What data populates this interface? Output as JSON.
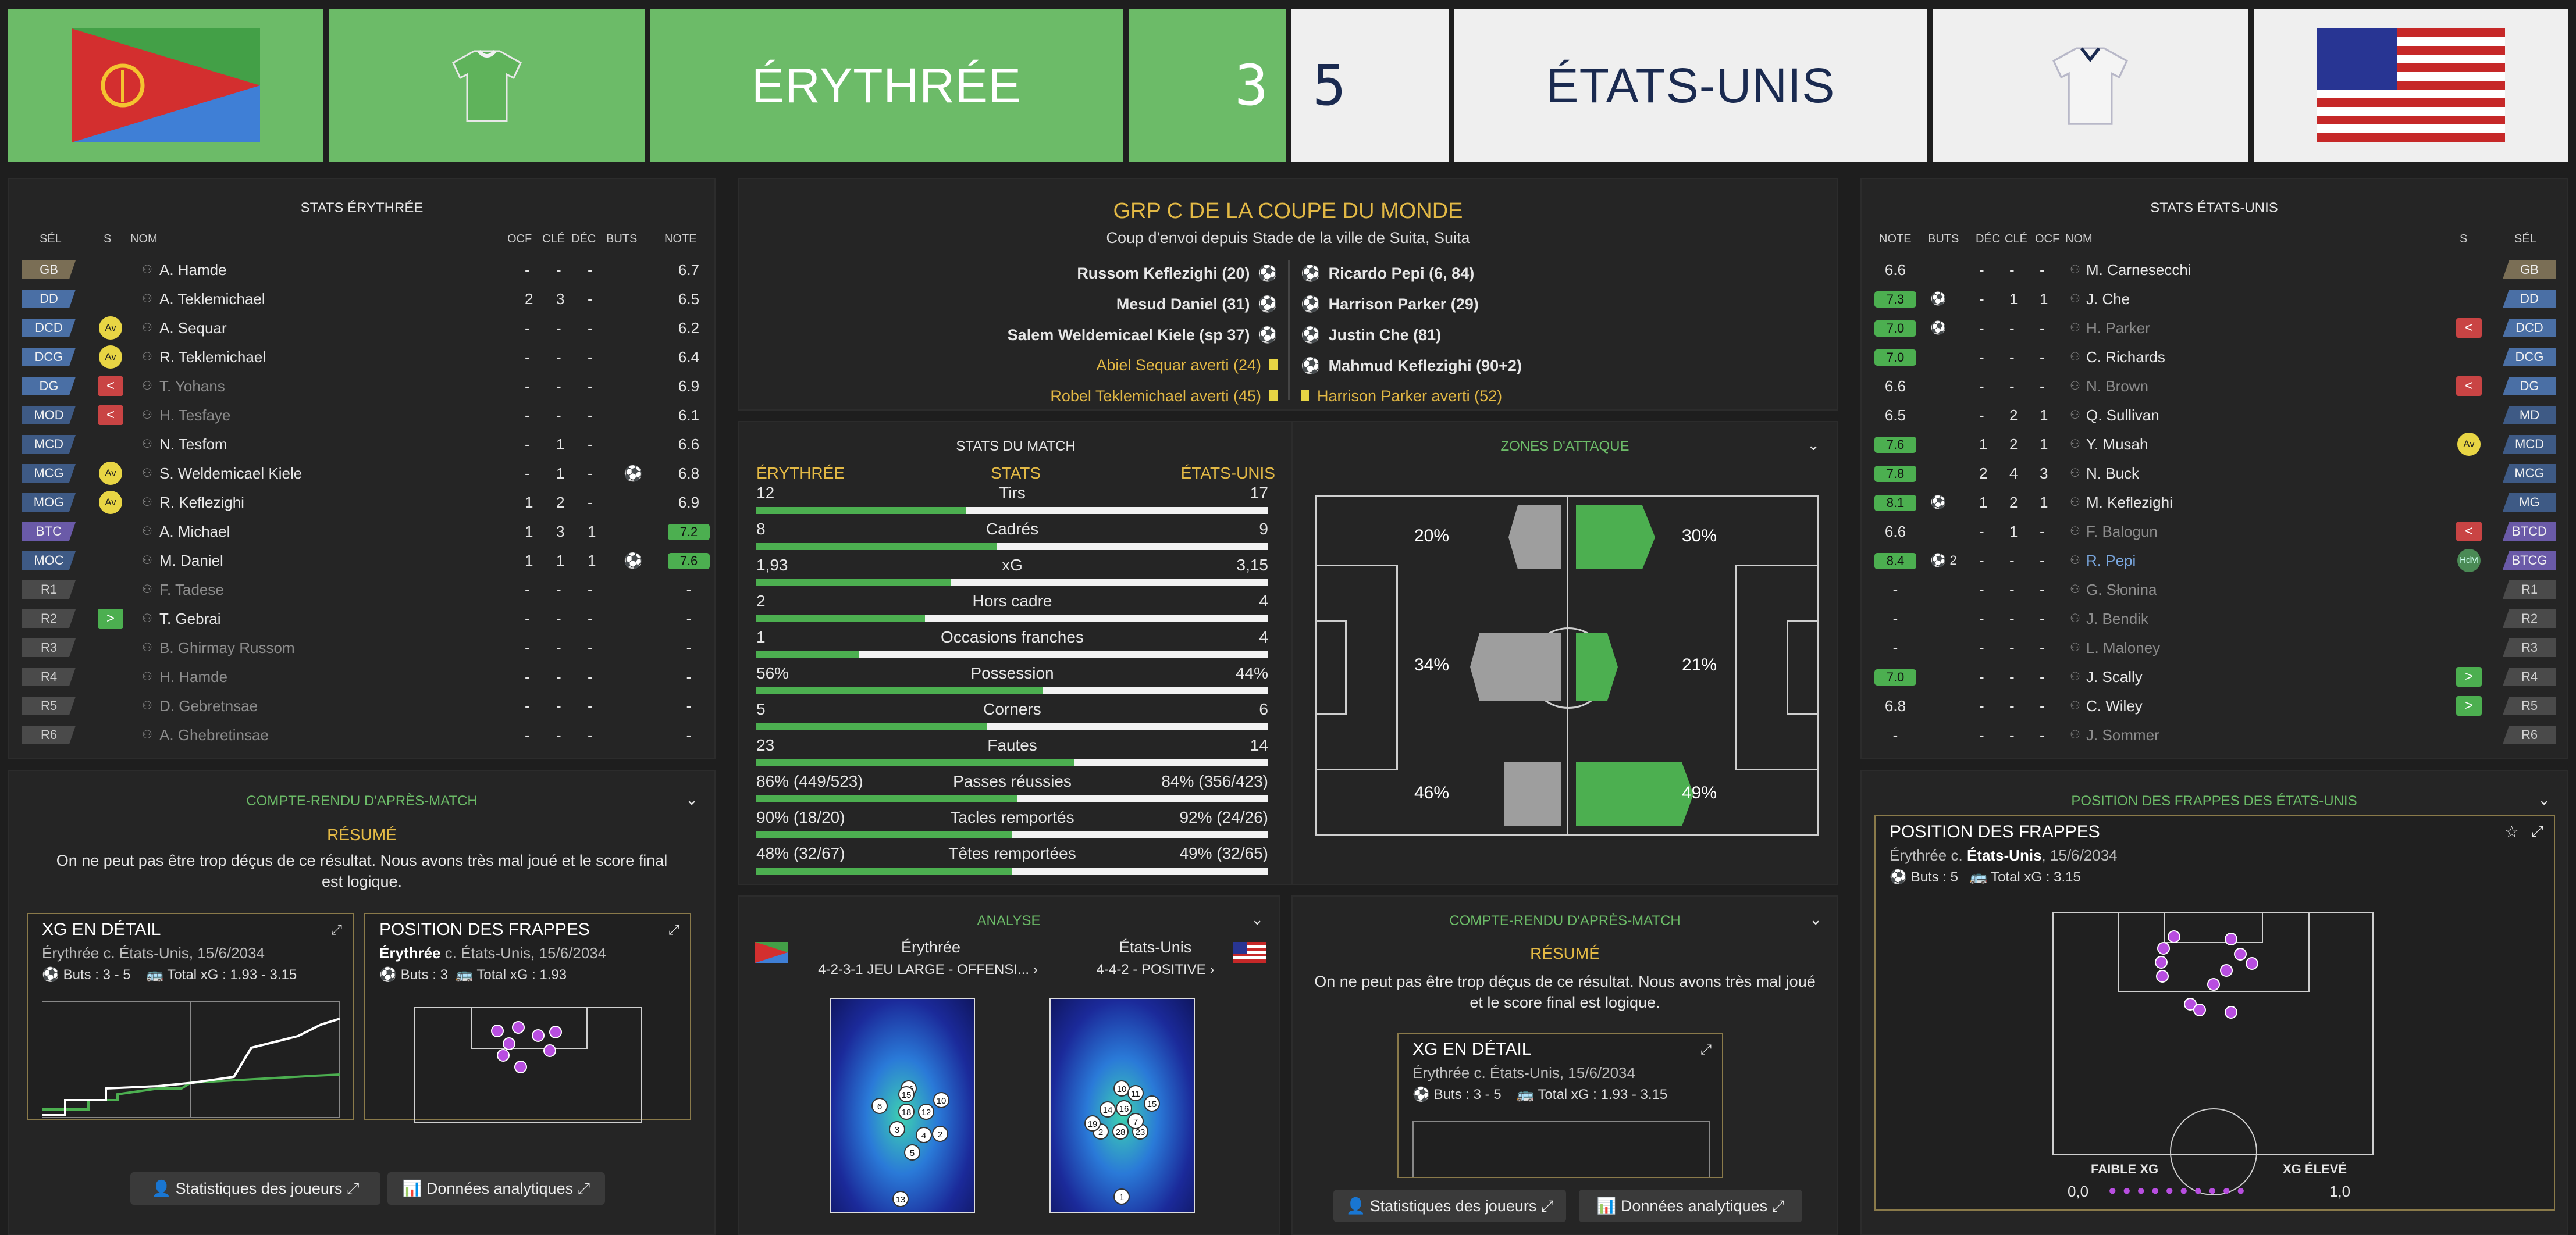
{
  "header": {
    "home_name": "ÉRYTHRÉE",
    "home_score": "3",
    "away_score": "5",
    "away_name": "ÉTATS-UNIS"
  },
  "left": {
    "title": "STATS ÉRYTHRÉE",
    "cols": {
      "sel": "SÉL",
      "s": "S",
      "nom": "NOM",
      "ocf": "OCF",
      "cle": "CLÉ",
      "dec": "DÉC",
      "buts": "BUTS",
      "note": "NOTE"
    },
    "rows": [
      {
        "pos": "GB",
        "name": "A. Hamde",
        "ocf": "-",
        "cle": "-",
        "dec": "-",
        "note": "6.7",
        "cls": "gk"
      },
      {
        "pos": "DD",
        "name": "A. Teklemichael",
        "ocf": "2",
        "cle": "3",
        "dec": "-",
        "note": "6.5",
        "cls": "df"
      },
      {
        "pos": "DCD",
        "name": "A. Sequar",
        "ocf": "-",
        "cle": "-",
        "dec": "-",
        "note": "6.2",
        "cls": "df",
        "s": "Av"
      },
      {
        "pos": "DCG",
        "name": "R. Teklemichael",
        "ocf": "-",
        "cle": "-",
        "dec": "-",
        "note": "6.4",
        "cls": "df",
        "s": "Av"
      },
      {
        "pos": "DG",
        "name": "T. Yohans",
        "ocf": "-",
        "cle": "-",
        "dec": "-",
        "note": "6.9",
        "cls": "df",
        "sub": "<",
        "dim": true
      },
      {
        "pos": "MOD",
        "name": "H. Tesfaye",
        "ocf": "-",
        "cle": "-",
        "dec": "-",
        "note": "6.1",
        "cls": "md",
        "sub": "<",
        "dim": true
      },
      {
        "pos": "MCD",
        "name": "N. Tesfom",
        "ocf": "-",
        "cle": "1",
        "dec": "-",
        "note": "6.6",
        "cls": "md"
      },
      {
        "pos": "MCG",
        "name": "S. Weldemicael Kiele",
        "ocf": "-",
        "cle": "1",
        "dec": "-",
        "note": "6.8",
        "cls": "md",
        "s": "Av",
        "goal": "⚽"
      },
      {
        "pos": "MOG",
        "name": "R. Keflezighi",
        "ocf": "1",
        "cle": "2",
        "dec": "-",
        "note": "6.9",
        "cls": "md",
        "s": "Av"
      },
      {
        "pos": "BTC",
        "name": "A. Michael",
        "ocf": "1",
        "cle": "3",
        "dec": "1",
        "note": "7.2",
        "cls": "at",
        "hi": true
      },
      {
        "pos": "MOC",
        "name": "M. Daniel",
        "ocf": "1",
        "cle": "1",
        "dec": "1",
        "note": "7.6",
        "cls": "md",
        "hi": true,
        "goal": "⚽"
      },
      {
        "pos": "R1",
        "name": "F. Tadese",
        "ocf": "-",
        "cle": "-",
        "dec": "-",
        "note": "-",
        "cls": "sb",
        "dim": true
      },
      {
        "pos": "R2",
        "name": "T. Gebrai",
        "ocf": "-",
        "cle": "-",
        "dec": "-",
        "note": "-",
        "cls": "sb",
        "sub": ">"
      },
      {
        "pos": "R3",
        "name": "B. Ghirmay Russom",
        "ocf": "-",
        "cle": "-",
        "dec": "-",
        "note": "-",
        "cls": "sb",
        "dim": true
      },
      {
        "pos": "R4",
        "name": "H. Hamde",
        "ocf": "-",
        "cle": "-",
        "dec": "-",
        "note": "-",
        "cls": "sb",
        "dim": true
      },
      {
        "pos": "R5",
        "name": "D. Gebretnsae",
        "ocf": "-",
        "cle": "-",
        "dec": "-",
        "note": "-",
        "cls": "sb",
        "dim": true
      },
      {
        "pos": "R6",
        "name": "A. Ghebretinsae",
        "ocf": "-",
        "cle": "-",
        "dec": "-",
        "note": "-",
        "cls": "sb",
        "dim": true
      }
    ]
  },
  "right": {
    "title": "STATS ÉTATS-UNIS",
    "cols": {
      "note": "NOTE",
      "buts": "BUTS",
      "dec": "DÉC",
      "cle": "CLÉ",
      "ocf": "OCF",
      "nom": "NOM",
      "s": "S",
      "sel": "SÉL"
    },
    "rows": [
      {
        "pos": "GB",
        "name": "M. Carnesecchi",
        "dec": "-",
        "cle": "-",
        "ocf": "-",
        "note": "6.6",
        "cls": "gk"
      },
      {
        "pos": "DD",
        "name": "J. Che",
        "dec": "-",
        "cle": "1",
        "ocf": "1",
        "note": "7.3",
        "cls": "df",
        "hi": true,
        "goal": "⚽"
      },
      {
        "pos": "DCD",
        "name": "H. Parker",
        "dec": "-",
        "cle": "-",
        "ocf": "-",
        "note": "7.0",
        "cls": "df",
        "hi": true,
        "goal": "⚽",
        "sub": "<",
        "dim": true
      },
      {
        "pos": "DCG",
        "name": "C. Richards",
        "dec": "-",
        "cle": "-",
        "ocf": "-",
        "note": "7.0",
        "cls": "df",
        "hi": true
      },
      {
        "pos": "DG",
        "name": "N. Brown",
        "dec": "-",
        "cle": "-",
        "ocf": "-",
        "note": "6.6",
        "cls": "df",
        "sub": "<",
        "dim": true
      },
      {
        "pos": "MD",
        "name": "Q. Sullivan",
        "dec": "-",
        "cle": "2",
        "ocf": "1",
        "note": "6.5",
        "cls": "md"
      },
      {
        "pos": "MCD",
        "name": "Y. Musah",
        "dec": "1",
        "cle": "2",
        "ocf": "1",
        "note": "7.6",
        "cls": "md",
        "hi": true,
        "s": "Av"
      },
      {
        "pos": "MCG",
        "name": "N. Buck",
        "dec": "2",
        "cle": "4",
        "ocf": "3",
        "note": "7.8",
        "cls": "md",
        "hi": true
      },
      {
        "pos": "MG",
        "name": "M. Keflezighi",
        "dec": "1",
        "cle": "2",
        "ocf": "1",
        "note": "8.1",
        "cls": "md",
        "hi": true,
        "goal": "⚽"
      },
      {
        "pos": "BTCD",
        "name": "F. Balogun",
        "dec": "-",
        "cle": "1",
        "ocf": "-",
        "note": "6.6",
        "cls": "at",
        "sub": "<",
        "dim": true
      },
      {
        "pos": "BTCG",
        "name": "R. Pepi",
        "dec": "-",
        "cle": "-",
        "ocf": "-",
        "note": "8.4",
        "cls": "at",
        "hi": true,
        "goal": "⚽ 2",
        "s": "HdM",
        "blue": true
      },
      {
        "pos": "R1",
        "name": "G. Słonina",
        "dec": "-",
        "cle": "-",
        "ocf": "-",
        "note": "-",
        "cls": "sb",
        "dim": true
      },
      {
        "pos": "R2",
        "name": "J. Bendik",
        "dec": "-",
        "cle": "-",
        "ocf": "-",
        "note": "-",
        "cls": "sb",
        "dim": true
      },
      {
        "pos": "R3",
        "name": "L. Maloney",
        "dec": "-",
        "cle": "-",
        "ocf": "-",
        "note": "-",
        "cls": "sb",
        "dim": true
      },
      {
        "pos": "R4",
        "name": "J. Scally",
        "dec": "-",
        "cle": "-",
        "ocf": "-",
        "note": "7.0",
        "cls": "sb",
        "hi": true,
        "sub": ">"
      },
      {
        "pos": "R5",
        "name": "C. Wiley",
        "dec": "-",
        "cle": "-",
        "ocf": "-",
        "note": "6.8",
        "cls": "sb",
        "sub": ">"
      },
      {
        "pos": "R6",
        "name": "J. Sommer",
        "dec": "-",
        "cle": "-",
        "ocf": "-",
        "note": "-",
        "cls": "sb",
        "dim": true
      }
    ]
  },
  "match": {
    "title": "GRP C DE LA COUPE DU MONDE",
    "subtitle": "Coup d'envoi depuis Stade de la ville de Suita, Suita",
    "home_events": [
      "Russom Keflezighi (20)",
      "Mesud Daniel (31)",
      "Salem Weldemicael Kiele (sp 37)",
      "Abiel Sequar averti (24)",
      "Robel Teklemichael averti (45)"
    ],
    "away_events": [
      "Ricardo Pepi (6, 84)",
      "Harrison Parker (29)",
      "Justin Che (81)",
      "Mahmud Keflezighi (90+2)",
      "Harrison Parker averti (52)"
    ]
  },
  "stats": {
    "title": "STATS DU MATCH",
    "home": "ÉRYTHRÉE",
    "mid": "STATS",
    "away": "ÉTATS-UNIS",
    "rows": [
      {
        "l": "12",
        "c": "Tirs",
        "r": "17",
        "p": 0.41
      },
      {
        "l": "8",
        "c": "Cadrés",
        "r": "9",
        "p": 0.47
      },
      {
        "l": "1,93",
        "c": "xG",
        "r": "3,15",
        "p": 0.38
      },
      {
        "l": "2",
        "c": "Hors cadre",
        "r": "4",
        "p": 0.33
      },
      {
        "l": "1",
        "c": "Occasions franches",
        "r": "4",
        "p": 0.2
      },
      {
        "l": "56%",
        "c": "Possession",
        "r": "44%",
        "p": 0.56
      },
      {
        "l": "5",
        "c": "Corners",
        "r": "6",
        "p": 0.45
      },
      {
        "l": "23",
        "c": "Fautes",
        "r": "14",
        "p": 0.62
      },
      {
        "l": "86% (449/523)",
        "c": "Passes réussies",
        "r": "84% (356/423)",
        "p": 0.51
      },
      {
        "l": "90% (18/20)",
        "c": "Tacles remportés",
        "r": "92% (24/26)",
        "p": 0.5
      },
      {
        "l": "48% (32/67)",
        "c": "Têtes remportées",
        "r": "49% (32/65)",
        "p": 0.5
      }
    ]
  },
  "zones": {
    "title": "ZONES D'ATTAQUE",
    "l": [
      "20%",
      "34%",
      "46%"
    ],
    "r": [
      "30%",
      "21%",
      "49%"
    ]
  },
  "report": {
    "title": "COMPTE-RENDU D'APRÈS-MATCH",
    "resume": "RÉSUMÉ",
    "text": "On ne peut pas être trop déçus de ce résultat. Nous avons très mal joué et le score final est logique."
  },
  "xg_card": {
    "title": "XG EN DÉTAIL",
    "sub": "Érythrée c. États-Unis, 15/6/2034",
    "buts": "Buts : 3 - 5",
    "total": "Total xG : 1.93 - 3.15"
  },
  "shots_home": {
    "title": "POSITION DES FRAPPES",
    "team": "Érythrée",
    "rest": " c. États-Unis, 15/6/2034",
    "buts": "Buts : 3",
    "total": "Total xG : 1.93"
  },
  "shots_away_panel": "POSITION DES FRAPPES DES ÉTATS-UNIS",
  "shots_away": {
    "title": "POSITION DES FRAPPES",
    "pre": "Érythrée c. ",
    "team": "États-Unis",
    "rest": ", 15/6/2034",
    "buts": "Buts : 5",
    "total": "Total xG : 3.15",
    "low": "FAIBLE XG",
    "high": "XG ÉLEVÉ",
    "min": "0,0",
    "max": "1,0"
  },
  "analyse": {
    "title": "ANALYSE",
    "home": "Érythrée",
    "home_form": "4-2-3-1 JEU LARGE - OFFENSI...",
    "away": "États-Unis",
    "away_form": "4-4-2 - POSITIVE",
    "home_players": [
      "13",
      "5",
      "3",
      "4",
      "12",
      "2",
      "18",
      "6",
      "16",
      "10",
      "15"
    ],
    "away_players": [
      "1",
      "28",
      "23",
      "2",
      "19",
      "15",
      "7",
      "16",
      "14",
      "10",
      "11"
    ]
  },
  "buttons": {
    "players": "Statistiques des joueurs",
    "analytics": "Données analytiques"
  },
  "colors": {
    "home": "#6cbb68",
    "away": "#efefef",
    "gold": "#e3b945",
    "green": "#4caf50"
  }
}
